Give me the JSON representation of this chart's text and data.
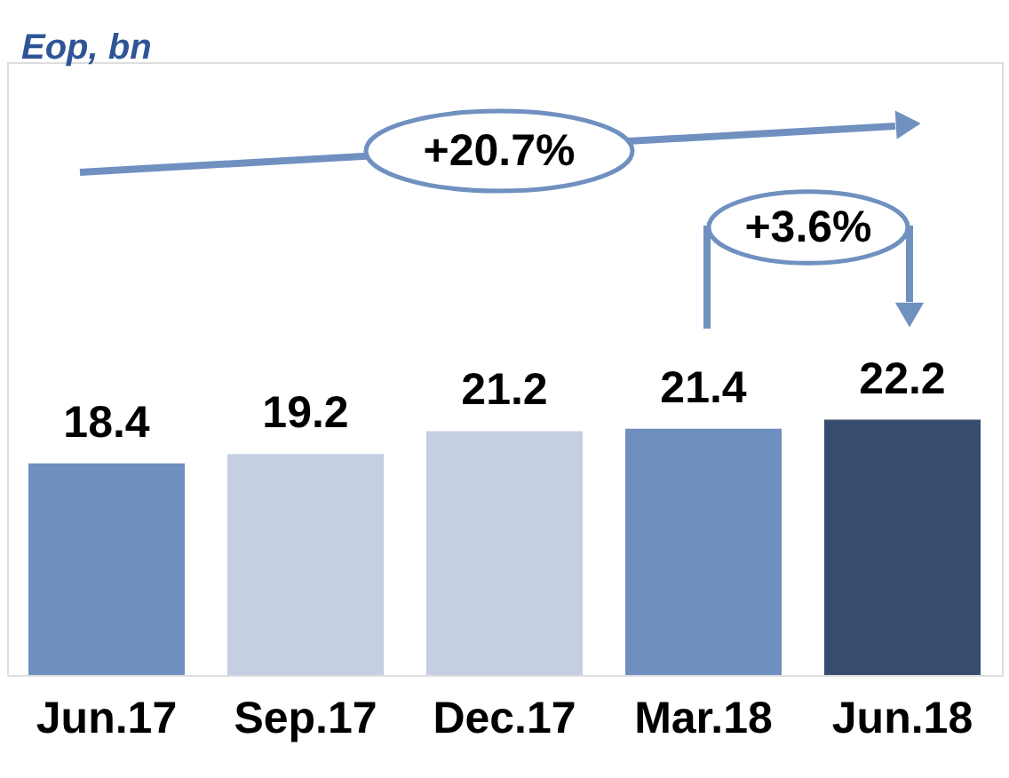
{
  "chart_data": {
    "type": "bar",
    "title": "Eop, bn",
    "categories": [
      "Jun.17",
      "Sep.17",
      "Dec.17",
      "Mar.18",
      "Jun.18"
    ],
    "values": [
      18.4,
      19.2,
      21.2,
      21.4,
      22.2
    ],
    "colors": [
      "#6e8fbf",
      "#c5cfe3",
      "#c5cfe3",
      "#6e8fbf",
      "#374d6f"
    ],
    "data_labels": true,
    "annotations": [
      "+20.7%",
      "+3.6%"
    ],
    "grid": false
  }
}
